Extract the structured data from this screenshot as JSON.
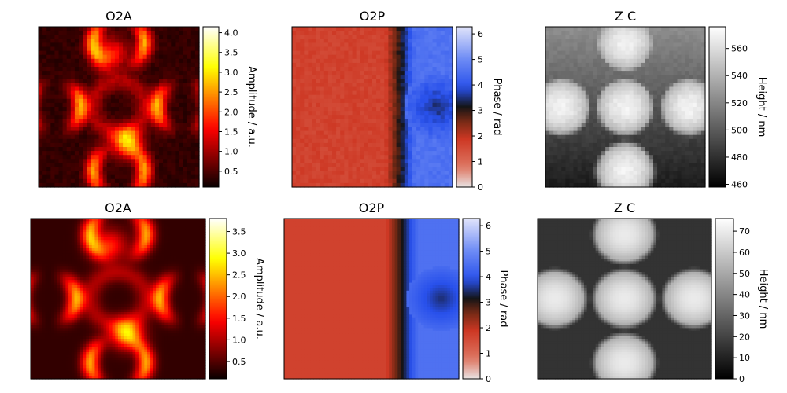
{
  "chart_data": [
    {
      "type": "heatmap",
      "title": "O2A",
      "colormap": "hot",
      "colorbar": {
        "label": "Amplitude / a.u.",
        "ticks": [
          "0.5",
          "1.0",
          "1.5",
          "2.0",
          "2.5",
          "3.0",
          "3.5",
          "4.0"
        ],
        "tick_values": [
          0.5,
          1.0,
          1.5,
          2.0,
          2.5,
          3.0,
          3.5,
          4.0
        ],
        "range": [
          0.1,
          4.15
        ]
      },
      "resolution": "low"
    },
    {
      "type": "heatmap",
      "title": "O2P",
      "colormap": "phase",
      "colorbar": {
        "label": "Phase / rad",
        "ticks": [
          "0",
          "1",
          "2",
          "3",
          "4",
          "5",
          "6"
        ],
        "tick_values": [
          0,
          1,
          2,
          3,
          4,
          5,
          6
        ],
        "range": [
          0,
          6.28
        ]
      },
      "resolution": "low"
    },
    {
      "type": "heatmap",
      "title": "Z C",
      "colormap": "gray",
      "colorbar": {
        "label": "Height / nm",
        "ticks": [
          "460",
          "480",
          "500",
          "520",
          "540",
          "560"
        ],
        "tick_values": [
          460,
          480,
          500,
          520,
          540,
          560
        ],
        "range": [
          458,
          576
        ]
      },
      "resolution": "low"
    },
    {
      "type": "heatmap",
      "title": "O2A",
      "colormap": "hot",
      "colorbar": {
        "label": "Amplitude / a.u.",
        "ticks": [
          "0.5",
          "1.0",
          "1.5",
          "2.0",
          "2.5",
          "3.0",
          "3.5"
        ],
        "tick_values": [
          0.5,
          1.0,
          1.5,
          2.0,
          2.5,
          3.0,
          3.5
        ],
        "range": [
          0.1,
          3.8
        ]
      },
      "resolution": "high"
    },
    {
      "type": "heatmap",
      "title": "O2P",
      "colormap": "phase",
      "colorbar": {
        "label": "Phase / rad",
        "ticks": [
          "0",
          "1",
          "2",
          "3",
          "4",
          "5",
          "6"
        ],
        "tick_values": [
          0,
          1,
          2,
          3,
          4,
          5,
          6
        ],
        "range": [
          0,
          6.28
        ]
      },
      "resolution": "high"
    },
    {
      "type": "heatmap",
      "title": "Z C",
      "colormap": "gray",
      "colorbar": {
        "label": "Height / nm",
        "ticks": [
          "0",
          "10",
          "20",
          "30",
          "40",
          "50",
          "60",
          "70"
        ],
        "tick_values": [
          0,
          10,
          20,
          30,
          40,
          50,
          60,
          70
        ],
        "range": [
          0,
          76
        ]
      },
      "resolution": "high"
    }
  ]
}
